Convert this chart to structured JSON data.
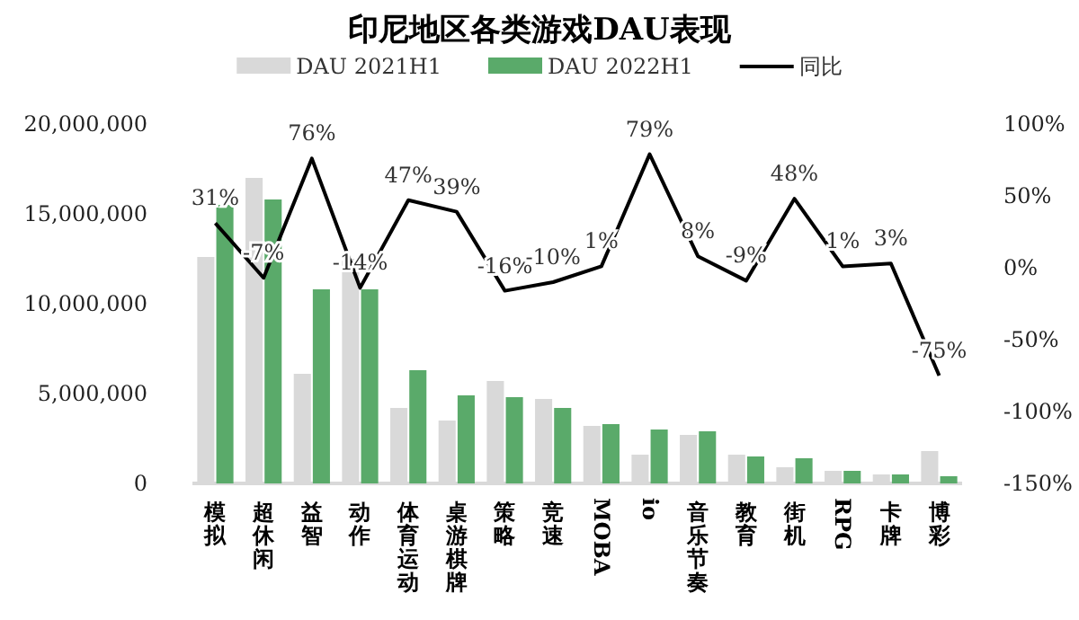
{
  "chart_data": {
    "type": "bar",
    "title": "印尼地区各类游戏DAU表现",
    "categories": [
      "模拟",
      "超休闲",
      "益智",
      "动作",
      "体育运动",
      "桌游棋牌",
      "策略",
      "竞速",
      "MOBA",
      "io",
      "音乐节奏",
      "教育",
      "街机",
      "RPG",
      "卡牌",
      "博彩"
    ],
    "series": [
      {
        "name": "DAU 2021H1",
        "color": "#d9d9d9",
        "values": [
          12600000,
          17000000,
          6100000,
          12500000,
          4200000,
          3500000,
          5700000,
          4700000,
          3200000,
          1600000,
          2700000,
          1600000,
          900000,
          700000,
          500000,
          1800000
        ]
      },
      {
        "name": "DAU 2022H1",
        "color": "#5aaa6a",
        "values": [
          15500000,
          15800000,
          10800000,
          10800000,
          6300000,
          4900000,
          4800000,
          4200000,
          3300000,
          3000000,
          2900000,
          1500000,
          1400000,
          700000,
          500000,
          400000
        ]
      },
      {
        "name": "同比",
        "type": "line",
        "axis": "y2",
        "color": "#000000",
        "values": [
          31,
          -7,
          76,
          -14,
          47,
          39,
          -16,
          -10,
          1,
          79,
          8,
          -9,
          48,
          1,
          3,
          -75
        ],
        "value_labels": [
          "31%",
          "-7%",
          "76%",
          "-14%",
          "47%",
          "39%",
          "-16%",
          "-10%",
          "1%",
          "79%",
          "8%",
          "-9%",
          "48%",
          "1%",
          "3%",
          "-75%"
        ]
      }
    ],
    "ylim": [
      0,
      20000000
    ],
    "yticks": [
      {
        "value": 0,
        "label": "0"
      },
      {
        "value": 5000000,
        "label": "5,000,000"
      },
      {
        "value": 10000000,
        "label": "10,000,000"
      },
      {
        "value": 15000000,
        "label": "15,000,000"
      },
      {
        "value": 20000000,
        "label": "20,000,000"
      }
    ],
    "y2lim": [
      -150,
      100
    ],
    "y2ticks": [
      {
        "value": -150,
        "label": "-150%"
      },
      {
        "value": -100,
        "label": "-100%"
      },
      {
        "value": -50,
        "label": "-50%"
      },
      {
        "value": 0,
        "label": "0%"
      },
      {
        "value": 50,
        "label": "50%"
      },
      {
        "value": 100,
        "label": "100%"
      }
    ],
    "legend": "top",
    "grid": false
  }
}
